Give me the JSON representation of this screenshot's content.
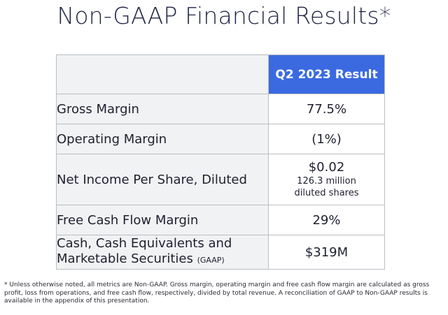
{
  "title": "Non-GAAP Financial Results*",
  "table": {
    "column_header": "Q2 2023 Result",
    "rows": [
      {
        "label": "Gross Margin",
        "value": "77.5%"
      },
      {
        "label": "Operating Margin",
        "value": "(1%)"
      },
      {
        "label": "Net Income Per Share, Diluted",
        "value": "$0.02",
        "sub_line1": "126.3 million",
        "sub_line2": "diluted shares"
      },
      {
        "label": "Free Cash Flow Margin",
        "value": "29%"
      },
      {
        "label_line1": "Cash, Cash Equivalents and",
        "label_line2": "Marketable Securities",
        "label_suffix": "(GAAP)",
        "value": "$319M"
      }
    ]
  },
  "footnote": "* Unless otherwise noted, all metrics are Non-GAAP.  Gross margin, operating margin and free cash flow margin are calculated as gross profit, loss from operations, and free cash flow, respectively, divided by total revenue.  A reconciliation of GAAP to Non-GAAP results is available in the appendix of this presentation."
}
